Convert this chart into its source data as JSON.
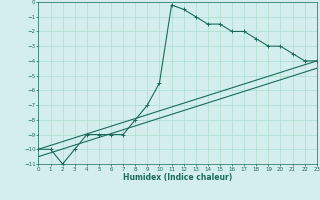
{
  "xlabel": "Humidex (Indice chaleur)",
  "ylabel": "",
  "bg_color": "#d4eeee",
  "grid_color": "#aaddcc",
  "line_color": "#1a6b5a",
  "xlim": [
    0,
    23
  ],
  "ylim": [
    -11,
    0
  ],
  "xticks": [
    0,
    1,
    2,
    3,
    4,
    5,
    6,
    7,
    8,
    9,
    10,
    11,
    12,
    13,
    14,
    15,
    16,
    17,
    18,
    19,
    20,
    21,
    22,
    23
  ],
  "yticks": [
    0,
    -1,
    -2,
    -3,
    -4,
    -5,
    -6,
    -7,
    -8,
    -9,
    -10,
    -11
  ],
  "main_x": [
    0,
    1,
    2,
    3,
    4,
    5,
    6,
    7,
    8,
    9,
    10,
    11,
    12,
    13,
    14,
    15,
    16,
    17,
    18,
    19,
    20,
    21,
    22,
    23
  ],
  "main_y": [
    -10,
    -10,
    -11,
    -10,
    -9,
    -9,
    -9,
    -9,
    -8,
    -7,
    -5.5,
    -0.2,
    -0.5,
    -1,
    -1.5,
    -1.5,
    -2,
    -2,
    -2.5,
    -3,
    -3,
    -3.5,
    -4,
    -4
  ],
  "line1_x": [
    0,
    23
  ],
  "line1_y": [
    -10,
    -4
  ],
  "line2_x": [
    0,
    23
  ],
  "line2_y": [
    -10.5,
    -4.5
  ],
  "marker": "+"
}
